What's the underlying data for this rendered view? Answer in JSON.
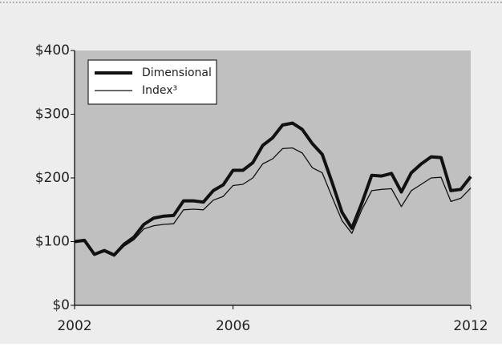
{
  "chart_data": {
    "type": "line",
    "x": [
      2002,
      2002.25,
      2002.5,
      2002.75,
      2003,
      2003.25,
      2003.5,
      2003.75,
      2004,
      2004.25,
      2004.5,
      2004.75,
      2005,
      2005.25,
      2005.5,
      2005.75,
      2006,
      2006.25,
      2006.5,
      2006.75,
      2007,
      2007.25,
      2007.5,
      2007.75,
      2008,
      2008.25,
      2008.5,
      2008.75,
      2009,
      2009.25,
      2009.5,
      2009.75,
      2010,
      2010.25,
      2010.5,
      2010.75,
      2011,
      2011.25,
      2011.5,
      2011.75,
      2012
    ],
    "series": [
      {
        "name": "Dimensional",
        "color": "#111111",
        "width": 4,
        "values": [
          100,
          102,
          80,
          86,
          79,
          96,
          107,
          127,
          137,
          140,
          141,
          164,
          164,
          162,
          180,
          189,
          212,
          212,
          224,
          251,
          263,
          283,
          286,
          276,
          254,
          237,
          193,
          146,
          121,
          160,
          204,
          203,
          207,
          178,
          208,
          222,
          233,
          232,
          180,
          182,
          202
        ]
      },
      {
        "name": "Index³",
        "color": "#111111",
        "width": 1.3,
        "values": [
          100,
          100,
          80,
          84,
          77,
          93,
          103,
          120,
          125,
          127,
          128,
          150,
          151,
          150,
          165,
          171,
          188,
          190,
          200,
          222,
          230,
          246,
          247,
          239,
          216,
          208,
          170,
          133,
          113,
          150,
          180,
          182,
          183,
          155,
          180,
          190,
          200,
          201,
          163,
          168,
          184
        ]
      }
    ],
    "xlim": [
      2002,
      2012
    ],
    "xticks": [
      2002,
      2006,
      2012
    ],
    "ylim": [
      0,
      400
    ],
    "yticks": [
      {
        "value": 0,
        "label": "$0"
      },
      {
        "value": 100,
        "label": "$100"
      },
      {
        "value": 200,
        "label": "$200"
      },
      {
        "value": 300,
        "label": "$300"
      },
      {
        "value": 400,
        "label": "$400"
      }
    ],
    "legend": "upper left"
  }
}
